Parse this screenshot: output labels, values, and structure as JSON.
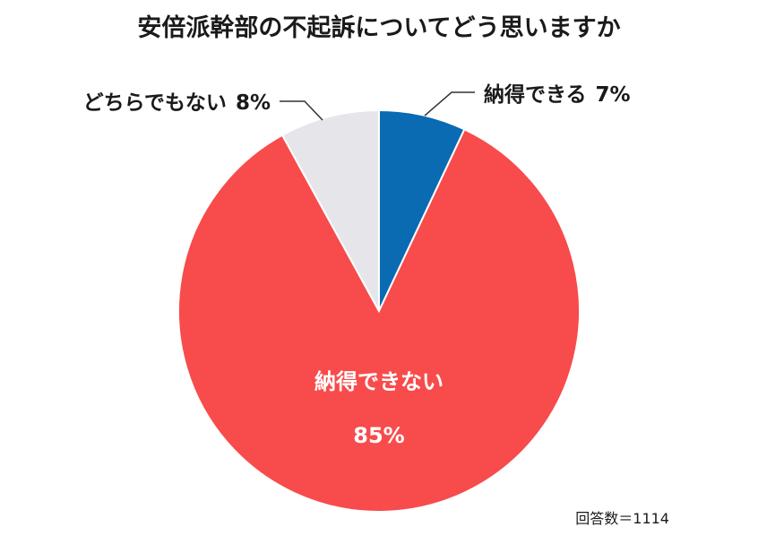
{
  "chart_data": {
    "type": "pie",
    "title": "安倍派幹部の不起訴についてどう思いますか",
    "slices": [
      {
        "label": "納得できる",
        "value": 7,
        "value_label": "7%",
        "color": "#0a6ab2",
        "label_position": "outside-top-right"
      },
      {
        "label": "納得できない",
        "value": 85,
        "value_label": "85%",
        "color": "#f84b4c",
        "label_position": "inside"
      },
      {
        "label": "どちらでもない",
        "value": 8,
        "value_label": "8%",
        "color": "#e6e6ea",
        "label_position": "outside-top-left"
      }
    ],
    "start_angle": "12 o'clock",
    "direction": "clockwise"
  },
  "footnote": "回答数＝1114"
}
